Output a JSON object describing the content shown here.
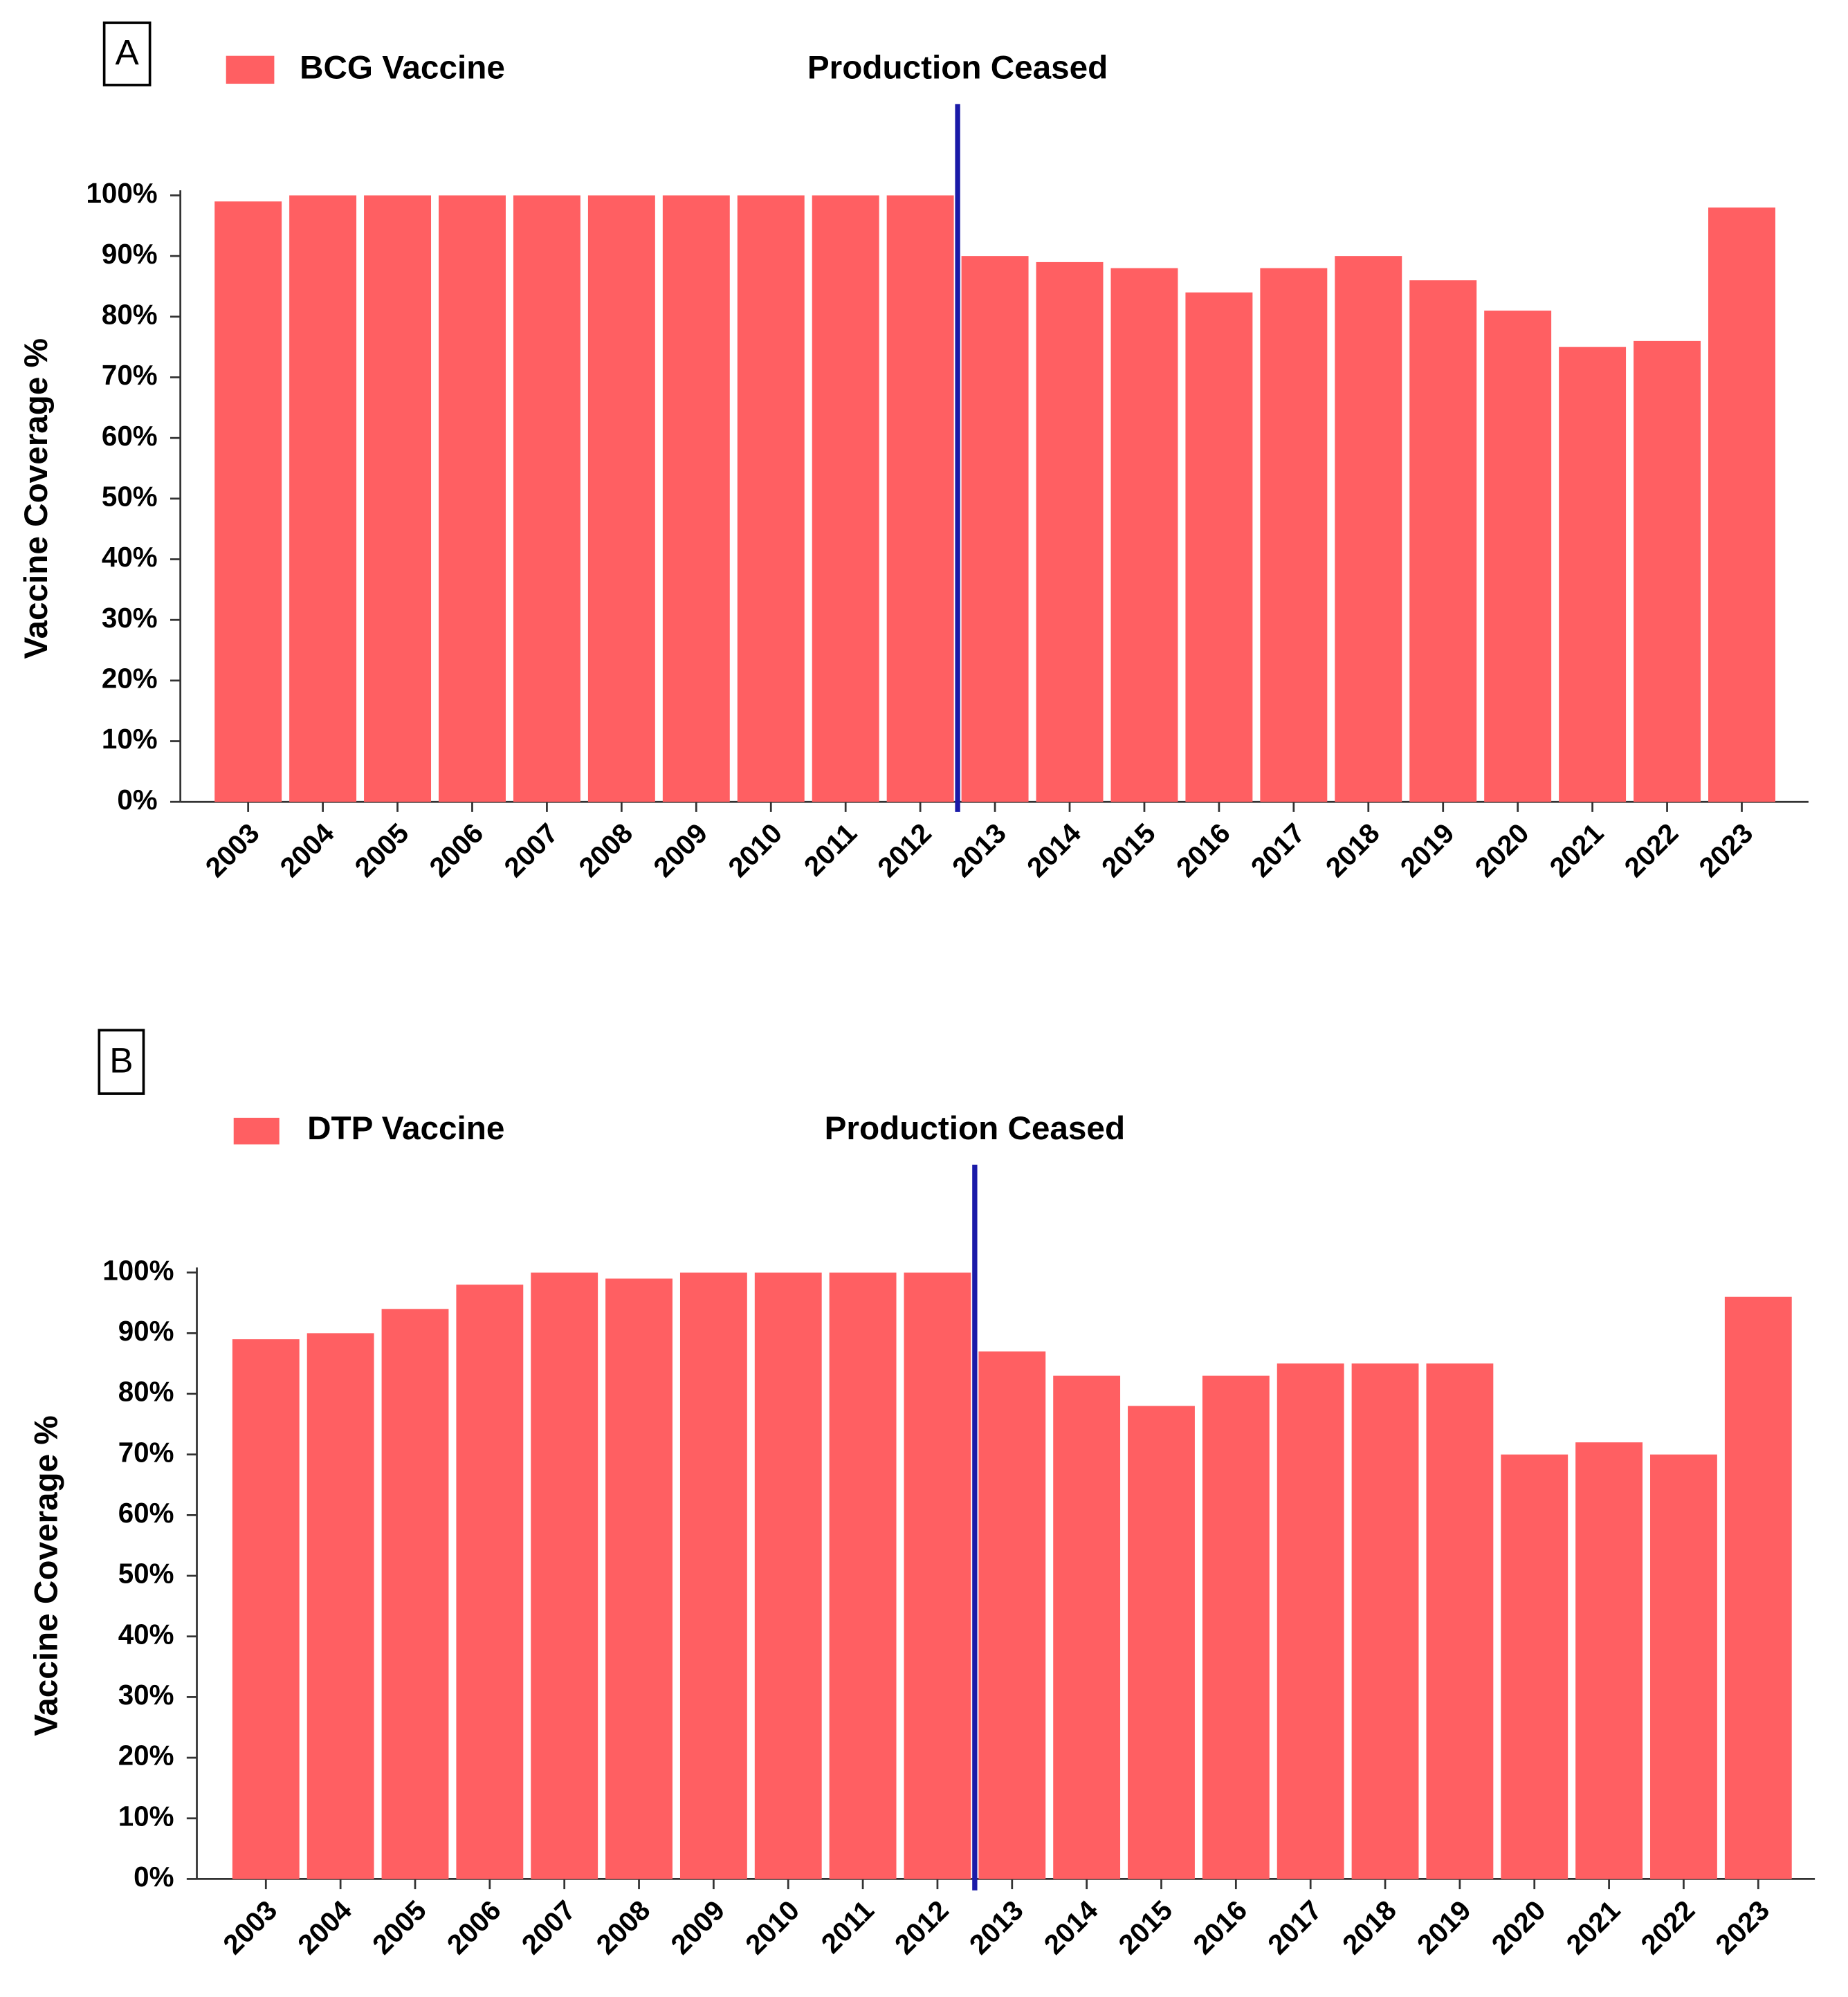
{
  "chart_data": [
    {
      "type": "bar",
      "panel": "A",
      "annotation": {
        "text": "Production Ceased",
        "x": 9.5
      },
      "y_label": "Vaccine Coverage %",
      "categories": [
        "2003",
        "2004",
        "2005",
        "2006",
        "2007",
        "2008",
        "2009",
        "2010",
        "2011",
        "2012",
        "2013",
        "2014",
        "2015",
        "2016",
        "2017",
        "2018",
        "2019",
        "2020",
        "2021",
        "2022",
        "2023"
      ],
      "series": [
        {
          "name": "BCG Vaccine",
          "color": "#ff5f62",
          "values": [
            99,
            100,
            100,
            100,
            100,
            100,
            100,
            100,
            100,
            100,
            90,
            89,
            88,
            84,
            88,
            90,
            86,
            81,
            75,
            76,
            98
          ]
        }
      ],
      "ylim": [
        0,
        100
      ],
      "yticks": [
        {
          "value": 0,
          "label": "0%"
        },
        {
          "value": 10,
          "label": "10%"
        },
        {
          "value": 20,
          "label": "20%"
        },
        {
          "value": 30,
          "label": "30%"
        },
        {
          "value": 40,
          "label": "40%"
        },
        {
          "value": 50,
          "label": "50%"
        },
        {
          "value": 60,
          "label": "60%"
        },
        {
          "value": 70,
          "label": "70%"
        },
        {
          "value": 80,
          "label": "80%"
        },
        {
          "value": 90,
          "label": "90%"
        },
        {
          "value": 100,
          "label": "100%"
        }
      ],
      "annotation_color": "#1a1aa8"
    },
    {
      "type": "bar",
      "panel": "B",
      "annotation": {
        "text": "Production Ceased",
        "x": 9.5
      },
      "y_label": "Vaccine Coverage %",
      "categories": [
        "2003",
        "2004",
        "2005",
        "2006",
        "2007",
        "2008",
        "2009",
        "2010",
        "2011",
        "2012",
        "2013",
        "2014",
        "2015",
        "2016",
        "2017",
        "2018",
        "2019",
        "2020",
        "2021",
        "2022",
        "2023"
      ],
      "series": [
        {
          "name": "DTP Vaccine",
          "color": "#ff5f62",
          "values": [
            89,
            90,
            94,
            98,
            100,
            99,
            100,
            100,
            100,
            100,
            87,
            83,
            78,
            83,
            85,
            85,
            85,
            70,
            72,
            70,
            96
          ]
        }
      ],
      "ylim": [
        0,
        100
      ],
      "yticks": [
        {
          "value": 0,
          "label": "0%"
        },
        {
          "value": 10,
          "label": "10%"
        },
        {
          "value": 20,
          "label": "20%"
        },
        {
          "value": 30,
          "label": "30%"
        },
        {
          "value": 40,
          "label": "40%"
        },
        {
          "value": 50,
          "label": "50%"
        },
        {
          "value": 60,
          "label": "60%"
        },
        {
          "value": 70,
          "label": "70%"
        },
        {
          "value": 80,
          "label": "80%"
        },
        {
          "value": 90,
          "label": "90%"
        },
        {
          "value": 100,
          "label": "100%"
        }
      ],
      "annotation_color": "#1a1aa8"
    }
  ]
}
